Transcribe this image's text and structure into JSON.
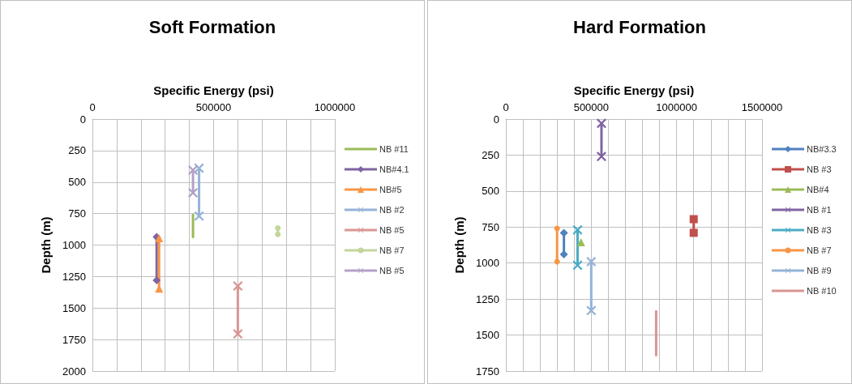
{
  "chart_data": [
    {
      "type": "line",
      "title": "Soft Formation",
      "xlabel": "Specific Energy (psi)",
      "ylabel": "Depth (m)",
      "xlim": [
        0,
        1000000
      ],
      "xticks": [
        0,
        {
          "value": 100000,
          "label": null
        },
        {
          "value": 200000,
          "label": null
        },
        {
          "value": 300000,
          "label": null
        },
        {
          "value": 400000,
          "label": null
        },
        500000,
        {
          "value": 600000,
          "label": null
        },
        {
          "value": 700000,
          "label": null
        },
        {
          "value": 800000,
          "label": null
        },
        {
          "value": 900000,
          "label": null
        },
        1000000
      ],
      "ylim": [
        2000,
        0
      ],
      "yticks": [
        0,
        250,
        500,
        750,
        1000,
        1250,
        1500,
        1750,
        2000
      ],
      "grid": true,
      "legend": "right",
      "series": [
        {
          "name": "NB #11",
          "color": "#9bbb59",
          "marker": "none",
          "x": [
            415000,
            415000
          ],
          "values": [
            760,
            935
          ]
        },
        {
          "name": "NB#4.1",
          "color": "#8064a2",
          "marker": "diamond",
          "x": [
            265000,
            265000
          ],
          "values": [
            935,
            1280
          ]
        },
        {
          "name": "NB#5",
          "color": "#f79646",
          "marker": "triangle",
          "x": [
            275000,
            275000
          ],
          "values": [
            945,
            1345
          ]
        },
        {
          "name": "NB #2",
          "color": "#95b3d7",
          "marker": "cross",
          "x": [
            440000,
            440000
          ],
          "values": [
            390,
            770
          ]
        },
        {
          "name": "NB #5",
          "color": "#d99694",
          "marker": "cross",
          "x": [
            600000,
            600000
          ],
          "values": [
            1325,
            1705
          ]
        },
        {
          "name": "NB #7",
          "color": "#c3d69b",
          "marker": "circle",
          "x": [
            765000,
            765000
          ],
          "values": [
            865,
            915
          ]
        },
        {
          "name": "NB #5",
          "color": "#b3a2c7",
          "marker": "cross",
          "x": [
            415000,
            415000
          ],
          "values": [
            405,
            585
          ]
        }
      ]
    },
    {
      "type": "line",
      "title": "Hard Formation",
      "xlabel": "Specific Energy (psi)",
      "ylabel": "Depth (m)",
      "xlim": [
        0,
        1500000
      ],
      "xticks": [
        0,
        {
          "value": 100000,
          "label": null
        },
        {
          "value": 200000,
          "label": null
        },
        {
          "value": 300000,
          "label": null
        },
        {
          "value": 400000,
          "label": null
        },
        500000,
        {
          "value": 600000,
          "label": null
        },
        {
          "value": 700000,
          "label": null
        },
        {
          "value": 800000,
          "label": null
        },
        {
          "value": 900000,
          "label": null
        },
        1000000,
        {
          "value": 1100000,
          "label": null
        },
        {
          "value": 1200000,
          "label": null
        },
        {
          "value": 1300000,
          "label": null
        },
        {
          "value": 1400000,
          "label": null
        },
        1500000
      ],
      "ylim": [
        1750,
        0
      ],
      "yticks": [
        0,
        250,
        500,
        750,
        1000,
        1250,
        1500,
        1750
      ],
      "grid": true,
      "legend": "right",
      "series": [
        {
          "name": "NB#3.3",
          "color": "#4f81bd",
          "marker": "diamond",
          "x": [
            340000,
            340000
          ],
          "values": [
            790,
            940
          ]
        },
        {
          "name": "NB #3",
          "color": "#c0504d",
          "marker": "square",
          "x": [
            1100000,
            1100000
          ],
          "values": [
            695,
            790
          ]
        },
        {
          "name": "NB#4",
          "color": "#9bbb59",
          "marker": "triangle",
          "x": [
            440000
          ],
          "values": [
            855
          ]
        },
        {
          "name": "NB #1",
          "color": "#8064a2",
          "marker": "cross",
          "x": [
            560000,
            560000
          ],
          "values": [
            30,
            260
          ]
        },
        {
          "name": "NB #3",
          "color": "#4bacc6",
          "marker": "cross",
          "x": [
            420000,
            420000
          ],
          "values": [
            770,
            1015
          ]
        },
        {
          "name": "NB #7",
          "color": "#f79646",
          "marker": "circle",
          "x": [
            300000,
            300000
          ],
          "values": [
            760,
            990
          ]
        },
        {
          "name": "NB #9",
          "color": "#95b3d7",
          "marker": "cross",
          "x": [
            500000,
            500000
          ],
          "values": [
            990,
            1330
          ]
        },
        {
          "name": "NB #10",
          "color": "#d99694",
          "marker": "none",
          "x": [
            880000,
            880000
          ],
          "values": [
            1335,
            1640
          ]
        }
      ]
    }
  ]
}
